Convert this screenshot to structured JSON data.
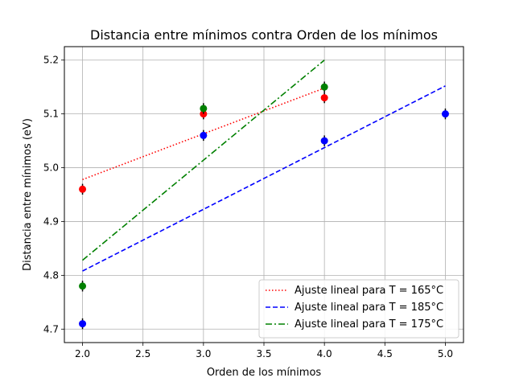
{
  "chart_data": {
    "type": "scatter",
    "title": "Distancia entre mínimos contra Orden de los mínimos",
    "xlabel": "Orden de los mínimos",
    "ylabel": "Distancia entre mínimos (eV)",
    "xlim": [
      1.85,
      5.15
    ],
    "ylim": [
      4.675,
      5.225
    ],
    "xticks": [
      "2.0",
      "2.5",
      "3.0",
      "3.5",
      "4.0",
      "4.5",
      "5.0"
    ],
    "yticks": [
      "4.7",
      "4.8",
      "4.9",
      "5.0",
      "5.1",
      "5.2"
    ],
    "grid": true,
    "legend_position": "lower-right",
    "series": [
      {
        "name": "Ajuste lineal para T = 165°C",
        "color": "#ff0000",
        "line_style": "dotted",
        "fit_x": [
          2.0,
          4.0
        ],
        "fit_y": [
          4.978,
          5.148
        ],
        "points_x": [
          2,
          3,
          4
        ],
        "points_y": [
          4.96,
          5.1,
          5.13
        ],
        "error": [
          0.01,
          0.01,
          0.01
        ]
      },
      {
        "name": "Ajuste lineal para T = 185°C",
        "color": "#0000ff",
        "line_style": "dashed",
        "fit_x": [
          2.0,
          5.0
        ],
        "fit_y": [
          4.808,
          5.152
        ],
        "points_x": [
          2,
          3,
          4,
          5
        ],
        "points_y": [
          4.71,
          5.06,
          5.05,
          5.1
        ],
        "error": [
          0.01,
          0.01,
          0.01,
          0.01
        ]
      },
      {
        "name": "Ajuste lineal para T = 175°C",
        "color": "#008000",
        "line_style": "dashdot",
        "fit_x": [
          2.0,
          4.0
        ],
        "fit_y": [
          4.828,
          5.2
        ],
        "points_x": [
          2,
          3,
          4
        ],
        "points_y": [
          4.78,
          5.11,
          5.15
        ],
        "error": [
          0.01,
          0.01,
          0.01
        ]
      }
    ]
  }
}
